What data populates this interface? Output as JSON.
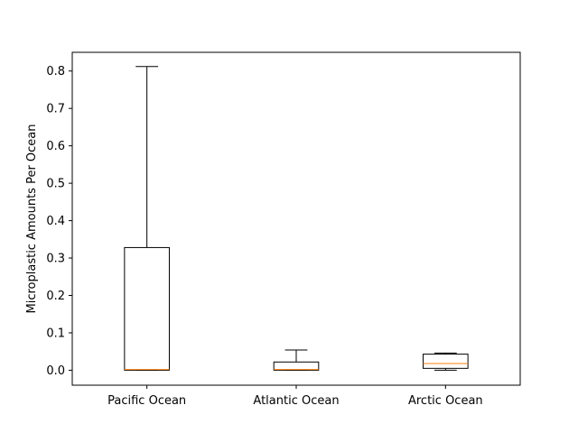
{
  "chart_data": {
    "type": "box",
    "title": "",
    "xlabel": "",
    "ylabel": "Microplastic Amounts Per Ocean",
    "ylim": [
      -0.04,
      0.85
    ],
    "yticks": [
      0.0,
      0.1,
      0.2,
      0.3,
      0.4,
      0.5,
      0.6,
      0.7,
      0.8
    ],
    "ytick_labels": [
      "0.0",
      "0.1",
      "0.2",
      "0.3",
      "0.4",
      "0.5",
      "0.6",
      "0.7",
      "0.8"
    ],
    "grid": false,
    "categories": [
      "Pacific Ocean",
      "Atlantic Ocean",
      "Arctic Ocean"
    ],
    "boxes": [
      {
        "category": "Pacific Ocean",
        "whisker_low": 0.0,
        "q1": 0.0,
        "median": 0.002,
        "q3": 0.328,
        "whisker_high": 0.812
      },
      {
        "category": "Atlantic Ocean",
        "whisker_low": 0.0,
        "q1": 0.0,
        "median": 0.002,
        "q3": 0.022,
        "whisker_high": 0.054
      },
      {
        "category": "Arctic Ocean",
        "whisker_low": 0.0,
        "q1": 0.005,
        "median": 0.018,
        "q3": 0.043,
        "whisker_high": 0.046
      }
    ],
    "colors": {
      "box": "#000000",
      "median": "#ff7f0e"
    }
  }
}
